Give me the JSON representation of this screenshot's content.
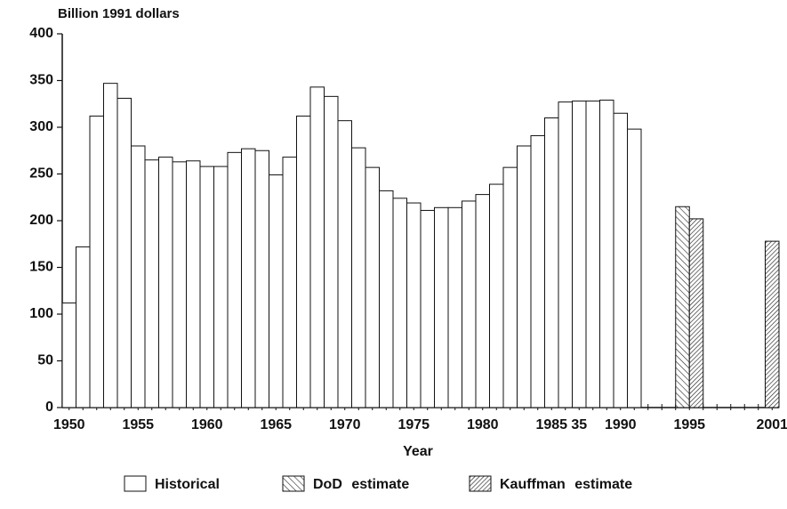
{
  "chart_data": {
    "type": "bar",
    "title": "Billion 1991 dollars",
    "x_label": "Year",
    "categories": [
      "1950",
      null,
      null,
      null,
      null,
      "1955",
      null,
      null,
      null,
      null,
      "1960",
      null,
      null,
      null,
      null,
      "1965",
      null,
      null,
      null,
      null,
      "1970",
      null,
      null,
      null,
      null,
      "1975",
      null,
      null,
      null,
      null,
      "1980",
      null,
      null,
      null,
      null,
      "1985",
      null,
      "35",
      null,
      null,
      "1990",
      null,
      null,
      null,
      null,
      "1995",
      null,
      null,
      null,
      null,
      null,
      "2001"
    ],
    "series": [
      {
        "name": "Historical",
        "color": "#ffffff",
        "pattern": "none",
        "values": [
          112,
          172,
          312,
          347,
          331,
          280,
          265,
          268,
          263,
          264,
          258,
          258,
          273,
          277,
          275,
          249,
          268,
          312,
          343,
          333,
          307,
          278,
          257,
          232,
          224,
          219,
          211,
          214,
          214,
          221,
          228,
          239,
          257,
          280,
          291,
          310,
          327,
          328,
          328,
          329,
          315,
          298,
          null,
          null,
          null,
          null,
          null,
          null,
          null,
          null,
          null,
          null
        ]
      },
      {
        "name": "DoD estimate",
        "color": "#ffffff",
        "pattern": "backslash",
        "values": [
          null,
          null,
          null,
          null,
          null,
          null,
          null,
          null,
          null,
          null,
          null,
          null,
          null,
          null,
          null,
          null,
          null,
          null,
          null,
          null,
          null,
          null,
          null,
          null,
          null,
          null,
          null,
          null,
          null,
          null,
          null,
          null,
          null,
          null,
          null,
          null,
          null,
          null,
          null,
          null,
          null,
          null,
          null,
          null,
          null,
          215,
          null,
          null,
          null,
          null,
          null,
          null
        ]
      },
      {
        "name": "Kauffman estimate",
        "color": "#ffffff",
        "pattern": "slash",
        "values": [
          null,
          null,
          null,
          null,
          null,
          null,
          null,
          null,
          null,
          null,
          null,
          null,
          null,
          null,
          null,
          null,
          null,
          null,
          null,
          null,
          null,
          null,
          null,
          null,
          null,
          null,
          null,
          null,
          null,
          null,
          null,
          null,
          null,
          null,
          null,
          null,
          null,
          null,
          null,
          null,
          null,
          null,
          null,
          null,
          null,
          202,
          null,
          null,
          null,
          null,
          null,
          178
        ]
      }
    ],
    "ylim": [
      0,
      400
    ],
    "yticks": [
      0,
      50,
      100,
      150,
      200,
      250,
      300,
      350,
      400
    ],
    "grid": false,
    "legend": "bottom"
  }
}
